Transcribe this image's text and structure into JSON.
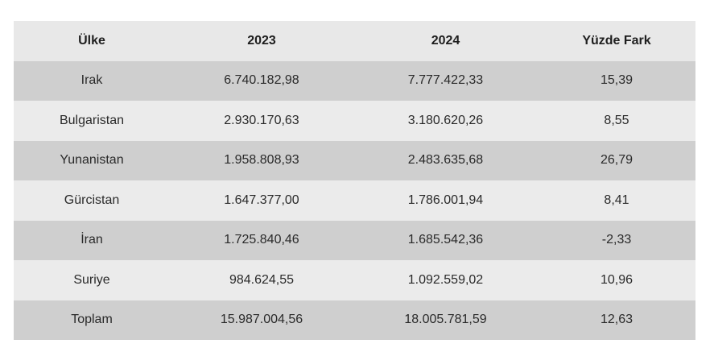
{
  "table": {
    "headers": [
      "Ülke",
      "2023",
      "2024",
      "Yüzde Fark"
    ],
    "rows": [
      [
        "Irak",
        "6.740.182,98",
        "7.777.422,33",
        "15,39"
      ],
      [
        "Bulgaristan",
        "2.930.170,63",
        "3.180.620,26",
        "8,55"
      ],
      [
        "Yunanistan",
        "1.958.808,93",
        "2.483.635,68",
        "26,79"
      ],
      [
        "Gürcistan",
        "1.647.377,00",
        "1.786.001,94",
        "8,41"
      ],
      [
        "İran",
        "1.725.840,46",
        "1.685.542,36",
        "-2,33"
      ],
      [
        "Suriye",
        "984.624,55",
        "1.092.559,02",
        "10,96"
      ],
      [
        "Toplam",
        "15.987.004,56",
        "18.005.781,59",
        "12,63"
      ]
    ]
  }
}
